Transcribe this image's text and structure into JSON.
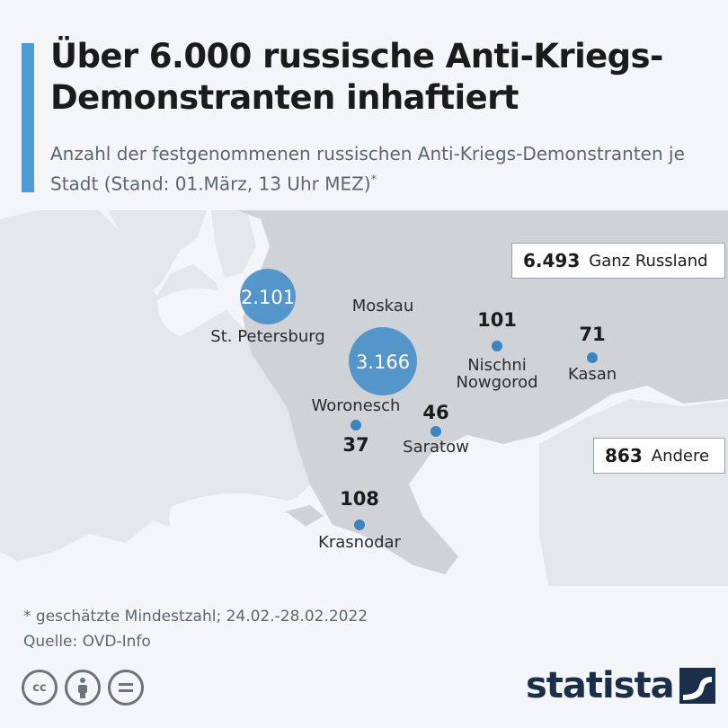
{
  "header": {
    "title": "Über 6.000 russische Anti-Kriegs-Demonstranten inhaftiert",
    "subtitle": "Anzahl der festgenommenen russischen Anti-Kriegs-Demonstranten je Stadt (Stand: 01.März, 13 Uhr MEZ)",
    "subtitle_mark": "*"
  },
  "totals": {
    "russia": {
      "value": "6.493",
      "label": "Ganz Russland"
    },
    "other": {
      "value": "863",
      "label": "Andere"
    }
  },
  "cities": [
    {
      "id": "moskau",
      "name": "Moskau",
      "value": "3.166",
      "count": 3166
    },
    {
      "id": "st-petersburg",
      "name": "St. Petersburg",
      "value": "2.101",
      "count": 2101
    },
    {
      "id": "krasnodar",
      "name": "Krasnodar",
      "value": "108",
      "count": 108
    },
    {
      "id": "nischni-nowgorod",
      "name_line1": "Nischni",
      "name_line2": "Nowgorod",
      "value": "101",
      "count": 101
    },
    {
      "id": "kasan",
      "name": "Kasan",
      "value": "71",
      "count": 71
    },
    {
      "id": "saratow",
      "name": "Saratow",
      "value": "46",
      "count": 46
    },
    {
      "id": "woronesch",
      "name": "Woronesch",
      "value": "37",
      "count": 37
    }
  ],
  "colors": {
    "accent": "#4a9bd6",
    "bubble": "#3a84c0",
    "bubble_big": "#4a8fc9",
    "russia_land": "#cfd2d6",
    "other_land": "#e3e6ea",
    "sea": "#f3f5f8"
  },
  "footer": {
    "footnote": "* geschätzte Mindestzahl; 24.02.-28.02.2022",
    "source": "Quelle: OVD-Info",
    "brand": "statista",
    "license_icons": [
      "cc-icon",
      "by-icon",
      "nd-icon"
    ]
  }
}
